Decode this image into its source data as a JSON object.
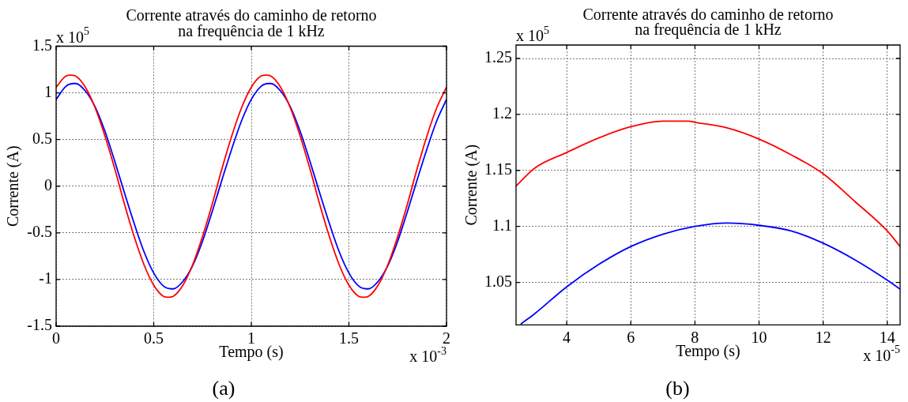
{
  "chart_data": [
    {
      "type": "line",
      "title": "Corrente através do caminho de retorno na frequência de 1 kHz",
      "xlabel": "Tempo (s)",
      "ylabel": "Corrente (A)",
      "annotations": [
        "x 10$^{5}$",
        "x 10$^{-3}$",
        "(a)"
      ],
      "xlim": [
        0,
        2
      ],
      "xticks": [
        0,
        0.5,
        1,
        1.5,
        2
      ],
      "ylim": [
        -1.5,
        1.5
      ],
      "yticks": [
        -1.5,
        -1,
        -0.5,
        0,
        0.5,
        1,
        1.5
      ],
      "grid": true,
      "series": [
        {
          "color": "#ff0000",
          "x": [
            0,
            0.05,
            0.075,
            0.1,
            0.15,
            0.2,
            0.25,
            0.3,
            0.35,
            0.4,
            0.45,
            0.5,
            0.55,
            0.575,
            0.6,
            0.65,
            0.7,
            0.75,
            0.8,
            0.85,
            0.9,
            0.95,
            1,
            1.05,
            1.075,
            1.1,
            1.15,
            1.2,
            1.25,
            1.3,
            1.35,
            1.4,
            1.45,
            1.5,
            1.55,
            1.575,
            1.6,
            1.65,
            1.7,
            1.75,
            1.8,
            1.85,
            1.9,
            1.95,
            2
          ],
          "values": [
            1.06,
            1.18,
            1.19,
            1.18,
            1.06,
            0.84,
            0.54,
            0.19,
            -0.19,
            -0.54,
            -0.84,
            -1.06,
            -1.18,
            -1.19,
            -1.18,
            -1.06,
            -0.84,
            -0.54,
            -0.19,
            0.19,
            0.54,
            0.84,
            1.06,
            1.18,
            1.19,
            1.18,
            1.06,
            0.84,
            0.54,
            0.19,
            -0.19,
            -0.54,
            -0.84,
            -1.06,
            -1.18,
            -1.19,
            -1.18,
            -1.06,
            -0.84,
            -0.54,
            -0.19,
            0.19,
            0.54,
            0.84,
            1.06
          ]
        },
        {
          "color": "#0000ff",
          "x": [
            0,
            0.05,
            0.09,
            0.1,
            0.15,
            0.2,
            0.25,
            0.3,
            0.35,
            0.4,
            0.45,
            0.5,
            0.55,
            0.59,
            0.6,
            0.65,
            0.7,
            0.75,
            0.8,
            0.85,
            0.9,
            0.95,
            1,
            1.05,
            1.09,
            1.1,
            1.15,
            1.2,
            1.25,
            1.3,
            1.35,
            1.4,
            1.45,
            1.5,
            1.55,
            1.59,
            1.6,
            1.65,
            1.7,
            1.75,
            1.8,
            1.85,
            1.9,
            1.95,
            2
          ],
          "values": [
            0.93,
            1.07,
            1.1,
            1.1,
            1.02,
            0.85,
            0.59,
            0.27,
            -0.07,
            -0.4,
            -0.7,
            -0.93,
            -1.07,
            -1.1,
            -1.1,
            -1.02,
            -0.85,
            -0.59,
            -0.27,
            0.07,
            0.4,
            0.7,
            0.93,
            1.07,
            1.1,
            1.1,
            1.02,
            0.85,
            0.59,
            0.27,
            -0.07,
            -0.4,
            -0.7,
            -0.93,
            -1.07,
            -1.1,
            -1.1,
            -1.02,
            -0.85,
            -0.59,
            -0.27,
            0.07,
            0.4,
            0.7,
            0.93
          ]
        }
      ]
    },
    {
      "type": "line",
      "title": "Corrente através do caminho de retorno na frequência de 1 kHz",
      "xlabel": "Tempo (s)",
      "ylabel": "Corrente (A)",
      "annotations": [
        "x 10$^{5}$",
        "x 10$^{-5}$",
        "(b)"
      ],
      "xlim": [
        2.42,
        14.4
      ],
      "xticks": [
        4,
        6,
        8,
        10,
        12,
        14
      ],
      "ylim": [
        1.012,
        1.262
      ],
      "yticks": [
        1.05,
        1.1,
        1.15,
        1.2,
        1.25
      ],
      "grid": true,
      "series": [
        {
          "color": "#ff0000",
          "x": [
            2.42,
            3,
            4,
            5,
            6,
            7,
            7.8,
            8,
            9,
            10,
            11,
            12,
            13,
            14,
            14.4
          ],
          "values": [
            1.136,
            1.152,
            1.166,
            1.179,
            1.189,
            1.194,
            1.194,
            1.193,
            1.188,
            1.178,
            1.164,
            1.147,
            1.122,
            1.096,
            1.082
          ]
        },
        {
          "color": "#0000ff",
          "x": [
            2.58,
            3,
            4,
            5,
            6,
            7,
            8,
            9,
            10,
            11,
            12,
            13,
            14,
            14.4
          ],
          "values": [
            1.013,
            1.022,
            1.046,
            1.066,
            1.082,
            1.093,
            1.1,
            1.103,
            1.101,
            1.096,
            1.085,
            1.07,
            1.052,
            1.044
          ]
        }
      ]
    }
  ]
}
